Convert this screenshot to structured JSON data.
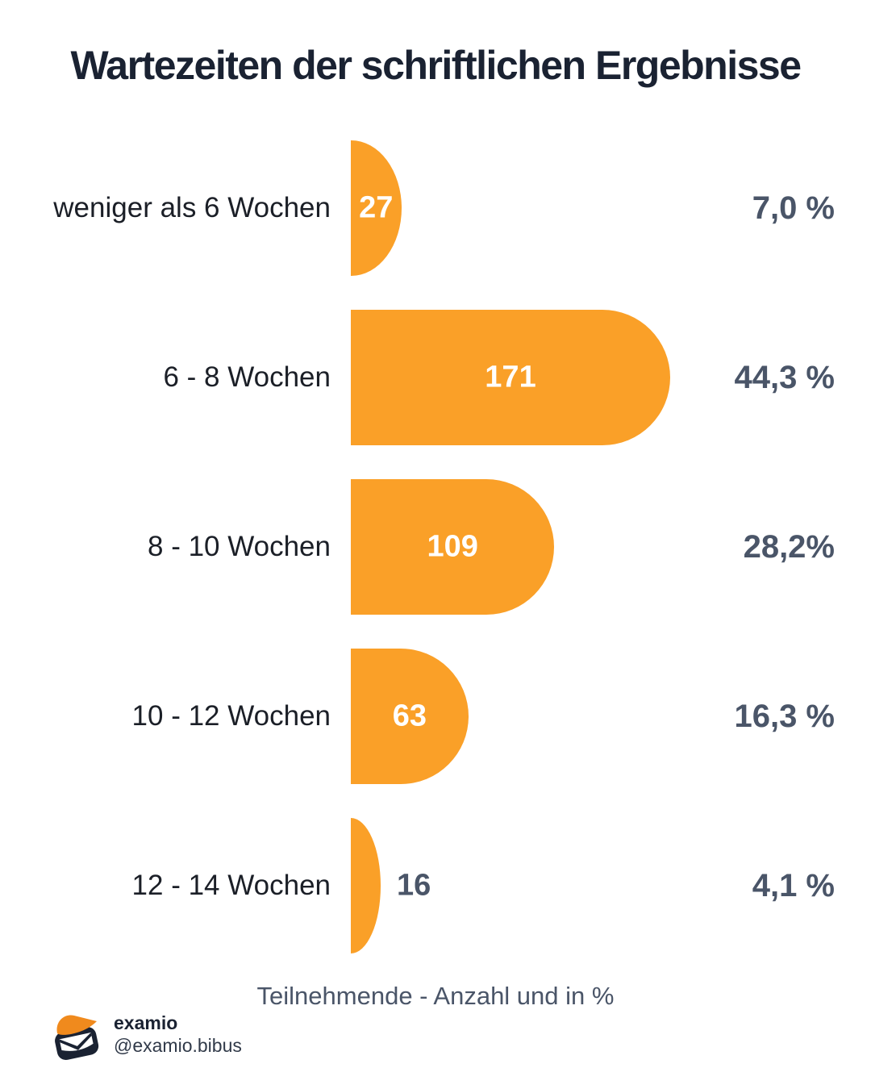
{
  "title": "Wartezeiten der schriftlichen Ergebnisse",
  "caption": "Teilnehmende - Anzahl und in %",
  "brand": {
    "name": "examio",
    "handle": "@examio.bibus"
  },
  "colors": {
    "bar": "#FAA028",
    "flap": "#F08A1D",
    "percent_text": "#4A5568",
    "label_text": "#1B1F27",
    "title_text": "#1A2232",
    "logo_dark": "#1A2232",
    "background": "#FFFFFF",
    "bar_value_text": "#FFFFFF"
  },
  "chart_data": {
    "type": "bar",
    "orientation": "horizontal",
    "title": "Wartezeiten der schriftlichen Ergebnisse",
    "xlabel": "Teilnehmende - Anzahl und in %",
    "categories": [
      "weniger als 6 Wochen",
      "6 - 8 Wochen",
      "8 - 10 Wochen",
      "10 - 12 Wochen",
      "12 - 14 Wochen"
    ],
    "values": [
      27,
      171,
      109,
      63,
      16
    ],
    "value_labels": [
      "27",
      "171",
      "109",
      "63",
      "16"
    ],
    "percents": [
      7.0,
      44.3,
      28.2,
      16.3,
      4.1
    ],
    "percent_labels": [
      "7,0 %",
      "44,3 %",
      "28,2%",
      "16,3 %",
      "4,1 %"
    ],
    "value_inside": [
      true,
      true,
      true,
      true,
      false
    ],
    "xlim": [
      0,
      171
    ],
    "grid": false,
    "legend": false,
    "bar_color": "#FAA028"
  }
}
